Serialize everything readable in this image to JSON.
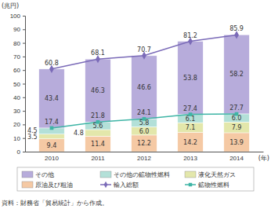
{
  "chart_data": {
    "type": "bar",
    "stacked": true,
    "data_labels": true,
    "grid": false,
    "legend": "bottom",
    "y_label": "(兆円)",
    "x_label": "(年)",
    "annotations": [
      "資料：財務省「貿易統計」から作成。"
    ],
    "categories": [
      "2010",
      "2011",
      "2012",
      "2013",
      "2014"
    ],
    "ylim": [
      0,
      100
    ],
    "yticks": [
      0,
      10,
      20,
      30,
      40,
      50,
      60,
      70,
      80,
      90,
      100
    ],
    "series": [
      {
        "name": "原油及び粗油",
        "type": "bar",
        "color": "#f5c9a4",
        "values": [
          9.4,
          11.4,
          12.2,
          14.2,
          13.9
        ],
        "value_labels": [
          "9.4",
          "11.4",
          "12.2",
          "14.2",
          "13.9"
        ]
      },
      {
        "name": "液化天然ガス",
        "type": "bar",
        "color": "#e3e7ab",
        "values": [
          3.5,
          4.8,
          6.0,
          7.1,
          7.9
        ],
        "value_labels": [
          "3.5",
          "4.8",
          "6.0",
          "7.1",
          "7.9"
        ]
      },
      {
        "name": "その他の鉱物性燃料",
        "type": "bar",
        "color": "#b3e0d8",
        "values": [
          4.5,
          5.6,
          5.8,
          6.1,
          6.0
        ],
        "value_labels": [
          "4.5",
          "5.6",
          "5.8",
          "6.1",
          "6.0"
        ]
      },
      {
        "name": "その他",
        "type": "bar",
        "color": "#b7acdb",
        "values": [
          43.4,
          46.3,
          46.6,
          53.8,
          58.2
        ],
        "value_labels": [
          "43.4",
          "46.3",
          "46.6",
          "53.8",
          "58.2"
        ]
      },
      {
        "name": "輸入総額",
        "type": "line",
        "color": "#7b6bb8",
        "marker": "diamond",
        "values": [
          60.8,
          68.1,
          70.7,
          81.2,
          85.9
        ],
        "value_labels": [
          "60.8",
          "68.1",
          "70.7",
          "81.2",
          "85.9"
        ]
      },
      {
        "name": "鉱物性燃料",
        "type": "line",
        "color": "#3fb5a6",
        "marker": "square",
        "values": [
          17.4,
          21.8,
          24.1,
          27.4,
          27.7
        ],
        "value_labels": [
          "17.4",
          "21.8",
          "24.1",
          "27.4",
          "27.7"
        ]
      }
    ]
  }
}
